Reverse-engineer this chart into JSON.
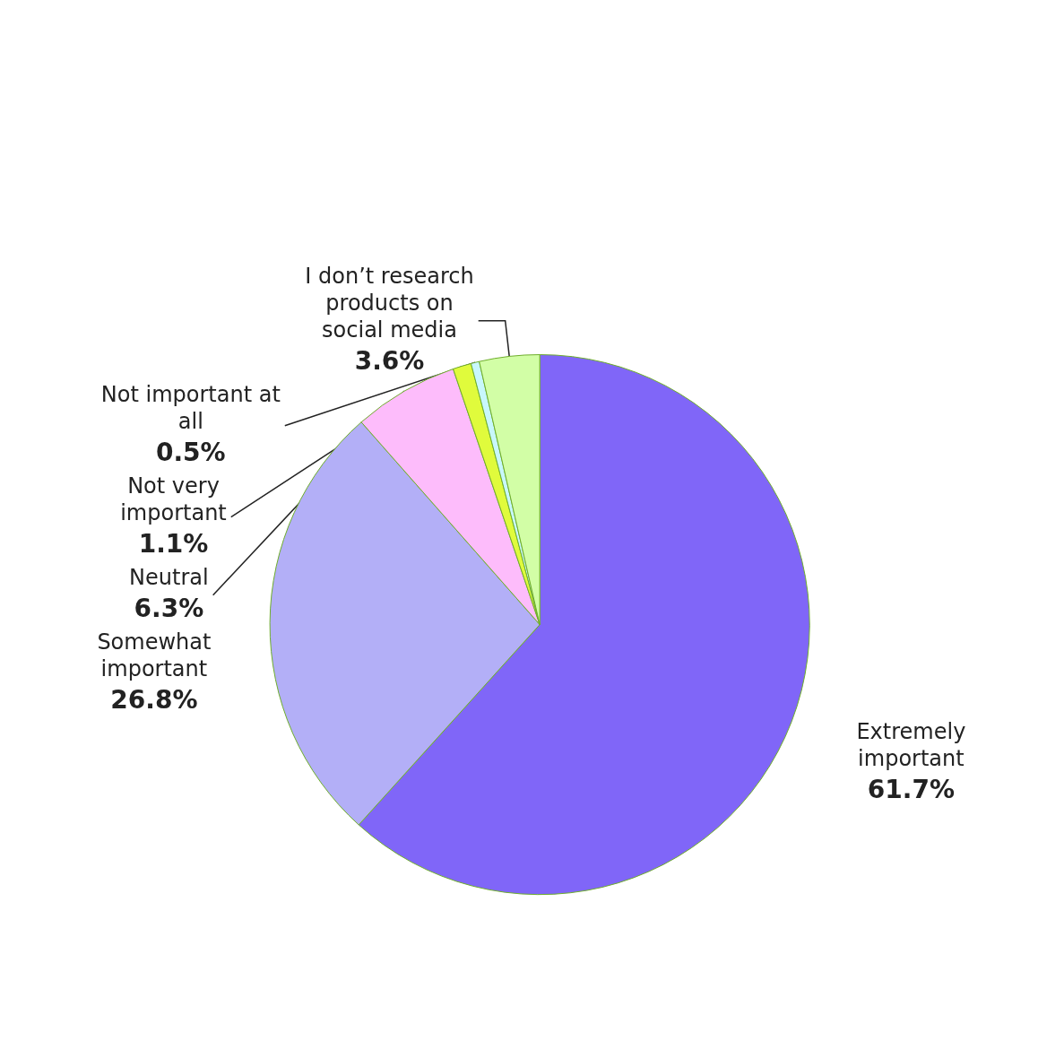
{
  "chart_data": {
    "type": "pie",
    "categories": [
      "Extremely important",
      "Somewhat important",
      "Neutral",
      "Not very important",
      "Not important at all",
      "I don’t research products on social media"
    ],
    "values": [
      61.7,
      26.8,
      6.3,
      1.1,
      0.5,
      3.6
    ],
    "value_labels": [
      "61.7%",
      "26.8%",
      "6.3%",
      "1.1%",
      "0.5%",
      "3.6%"
    ],
    "colors": [
      "#8066f8",
      "#b3aff7",
      "#fdbcfb",
      "#e0fb3c",
      "#c8f7fc",
      "#d2fea6"
    ],
    "legend": false
  }
}
